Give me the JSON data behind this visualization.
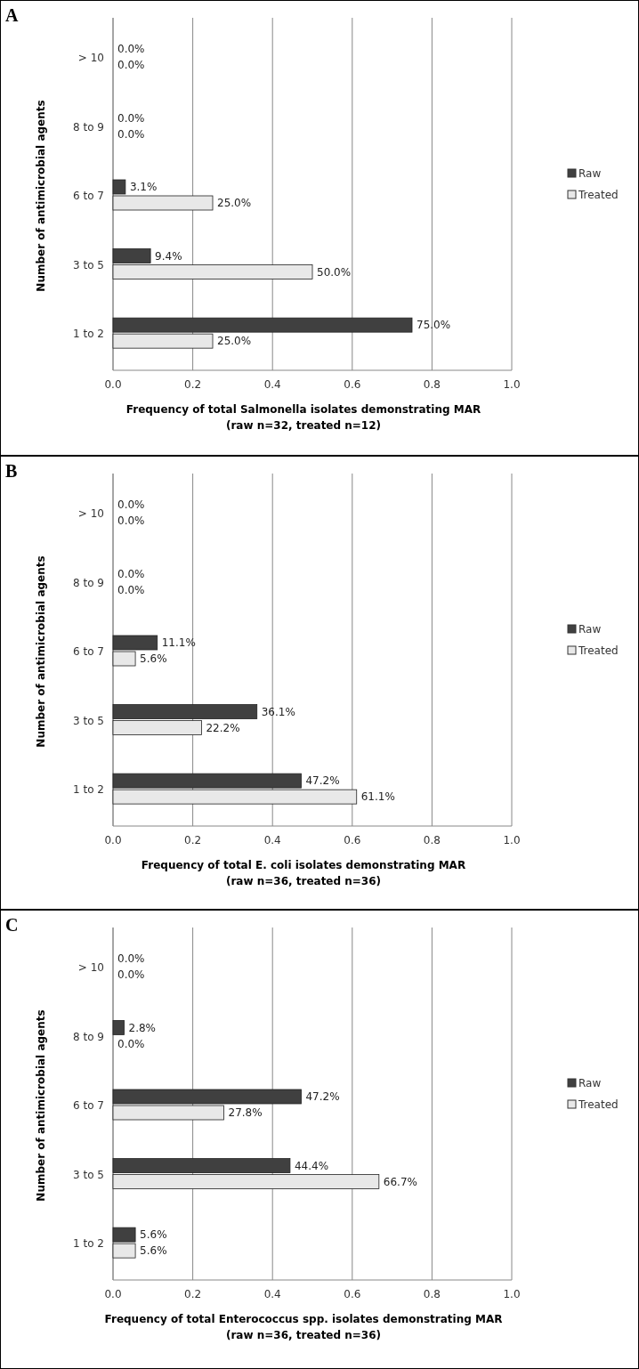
{
  "chart_data": [
    {
      "type": "bar",
      "orientation": "horizontal",
      "title": "A",
      "categories": [
        "> 10",
        "8 to 9",
        "6 to 7",
        "3 to 5",
        "1 to 2"
      ],
      "xlabel": "Frequency of total Salmonella isolates demonstrating MAR\n(raw n=32, treated n=12)",
      "ylabel": "Number of antimicrobial agents",
      "xlim": [
        0,
        1
      ],
      "xticks": [
        {
          "value": 0,
          "label": "0.0"
        },
        {
          "value": 0.2,
          "label": "0.2"
        },
        {
          "value": 0.4,
          "label": "0.4"
        },
        {
          "value": 0.6,
          "label": "0.6"
        },
        {
          "value": 0.8,
          "label": "0.8"
        },
        {
          "value": 1,
          "label": "1.0"
        }
      ],
      "grid": "x",
      "legend": "right",
      "series": [
        {
          "name": "Raw",
          "color": "#404040",
          "values": [
            0,
            0,
            0.031,
            0.094,
            0.75
          ],
          "value_labels": [
            "0.0%",
            "0.0%",
            "3.1%",
            "9.4%",
            "75.0%"
          ]
        },
        {
          "name": "Treated",
          "color": "#e8e8e8",
          "values": [
            0,
            0,
            0.25,
            0.5,
            0.25
          ],
          "value_labels": [
            "0.0%",
            "0.0%",
            "25.0%",
            "50.0%",
            "25.0%"
          ]
        }
      ]
    },
    {
      "type": "bar",
      "orientation": "horizontal",
      "title": "B",
      "categories": [
        "> 10",
        "8 to 9",
        "6 to 7",
        "3 to 5",
        "1 to 2"
      ],
      "xlabel": "Frequency of total E. coli isolates demonstrating MAR\n(raw n=36, treated n=36)",
      "ylabel": "Number of antimicrobial agents",
      "xlim": [
        0,
        1
      ],
      "xticks": [
        {
          "value": 0,
          "label": "0.0"
        },
        {
          "value": 0.2,
          "label": "0.2"
        },
        {
          "value": 0.4,
          "label": "0.4"
        },
        {
          "value": 0.6,
          "label": "0.6"
        },
        {
          "value": 0.8,
          "label": "0.8"
        },
        {
          "value": 1,
          "label": "1.0"
        }
      ],
      "grid": "x",
      "legend": "right",
      "series": [
        {
          "name": "Raw",
          "color": "#404040",
          "values": [
            0,
            0,
            0.111,
            0.361,
            0.472
          ],
          "value_labels": [
            "0.0%",
            "0.0%",
            "11.1%",
            "36.1%",
            "47.2%"
          ]
        },
        {
          "name": "Treated",
          "color": "#e8e8e8",
          "values": [
            0,
            0,
            0.056,
            0.222,
            0.611
          ],
          "value_labels": [
            "0.0%",
            "0.0%",
            "5.6%",
            "22.2%",
            "61.1%"
          ]
        }
      ]
    },
    {
      "type": "bar",
      "orientation": "horizontal",
      "title": "C",
      "categories": [
        "> 10",
        "8 to 9",
        "6 to 7",
        "3 to 5",
        "1 to 2"
      ],
      "xlabel": "Frequency of total Enterococcus spp. isolates demonstrating MAR\n(raw n=36, treated n=36)",
      "ylabel": "Number of antimicrobial agents",
      "xlim": [
        0,
        1
      ],
      "xticks": [
        {
          "value": 0,
          "label": "0.0"
        },
        {
          "value": 0.2,
          "label": "0.2"
        },
        {
          "value": 0.4,
          "label": "0.4"
        },
        {
          "value": 0.6,
          "label": "0.6"
        },
        {
          "value": 0.8,
          "label": "0.8"
        },
        {
          "value": 1,
          "label": "1.0"
        }
      ],
      "grid": "x",
      "legend": "right",
      "series": [
        {
          "name": "Raw",
          "color": "#404040",
          "values": [
            0,
            0.028,
            0.472,
            0.444,
            0.056
          ],
          "value_labels": [
            "0.0%",
            "2.8%",
            "47.2%",
            "44.4%",
            "5.6%"
          ]
        },
        {
          "name": "Treated",
          "color": "#e8e8e8",
          "values": [
            0,
            0,
            0.278,
            0.667,
            0.056
          ],
          "value_labels": [
            "0.0%",
            "0.0%",
            "27.8%",
            "66.7%",
            "5.6%"
          ]
        }
      ]
    }
  ]
}
